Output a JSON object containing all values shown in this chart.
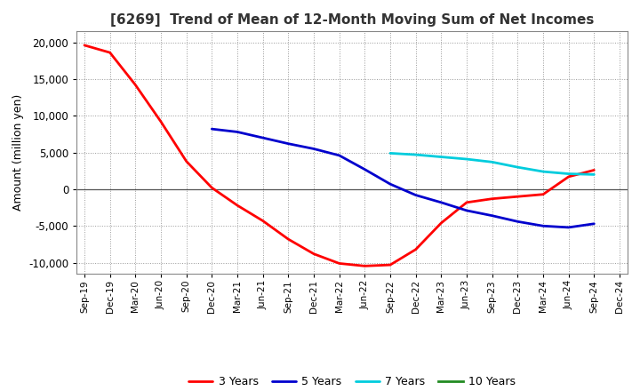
{
  "title": "[6269]  Trend of Mean of 12-Month Moving Sum of Net Incomes",
  "ylabel": "Amount (million yen)",
  "ylim": [
    -11500,
    21500
  ],
  "yticks": [
    -10000,
    -5000,
    0,
    5000,
    10000,
    15000,
    20000
  ],
  "background_color": "#ffffff",
  "plot_bg_color": "#ffffff",
  "grid_color": "#999999",
  "x_labels": [
    "Sep-19",
    "Dec-19",
    "Mar-20",
    "Jun-20",
    "Sep-20",
    "Dec-20",
    "Mar-21",
    "Jun-21",
    "Sep-21",
    "Dec-21",
    "Mar-22",
    "Jun-22",
    "Sep-22",
    "Dec-22",
    "Mar-23",
    "Jun-23",
    "Sep-23",
    "Dec-23",
    "Mar-24",
    "Jun-24",
    "Sep-24",
    "Dec-24"
  ],
  "series": {
    "3 Years": {
      "color": "#ff0000",
      "linewidth": 2.0,
      "data_x": [
        0,
        1,
        2,
        3,
        4,
        5,
        6,
        7,
        8,
        9,
        10,
        11,
        12,
        13,
        14,
        15,
        16,
        17,
        18,
        19,
        20
      ],
      "data_y": [
        19600,
        18600,
        14200,
        9200,
        3800,
        200,
        -2200,
        -4300,
        -6800,
        -8800,
        -10100,
        -10450,
        -10300,
        -8200,
        -4600,
        -1800,
        -1300,
        -1000,
        -700,
        1700,
        2600
      ]
    },
    "5 Years": {
      "color": "#0000cd",
      "linewidth": 2.0,
      "data_x": [
        5,
        6,
        7,
        8,
        9,
        10,
        11,
        12,
        13,
        14,
        15,
        16,
        17,
        18,
        19,
        20
      ],
      "data_y": [
        8200,
        7800,
        7000,
        6200,
        5500,
        4600,
        2700,
        700,
        -800,
        -1800,
        -2900,
        -3600,
        -4400,
        -5000,
        -5200,
        -4700
      ]
    },
    "7 Years": {
      "color": "#00ccdd",
      "linewidth": 2.0,
      "data_x": [
        12,
        13,
        14,
        15,
        16,
        17,
        18,
        19,
        20
      ],
      "data_y": [
        4900,
        4700,
        4400,
        4100,
        3700,
        3000,
        2400,
        2100,
        2000
      ]
    },
    "10 Years": {
      "color": "#228B22",
      "linewidth": 2.0,
      "data_x": [],
      "data_y": []
    }
  },
  "legend_order": [
    "3 Years",
    "5 Years",
    "7 Years",
    "10 Years"
  ]
}
